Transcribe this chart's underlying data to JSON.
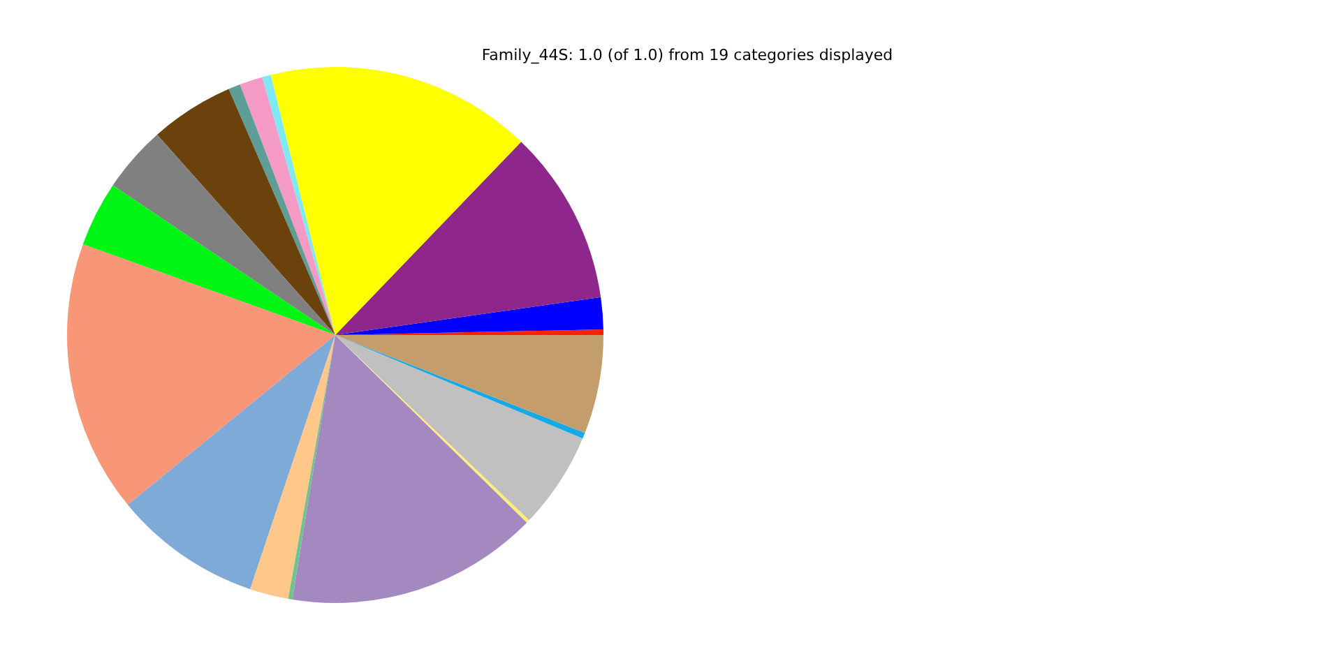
{
  "chart_data": {
    "type": "pie",
    "title": "Family_44S: 1.0 (of 1.0) from 19 categories displayed",
    "categories": [
      null,
      null,
      null,
      null,
      null,
      null,
      null,
      null,
      null,
      null,
      null,
      null,
      null,
      null,
      null,
      null,
      null,
      null,
      null
    ],
    "values": [
      0.53,
      1.39,
      0.72,
      5.06,
      4.0,
      3.94,
      16.42,
      8.94,
      2.33,
      0.25,
      15.22,
      0.2,
      5.83,
      0.36,
      5.95,
      0.33,
      1.92,
      10.56,
      16.05
    ],
    "colors": [
      "#7ee8f5",
      "#f59ac5",
      "#5f9e96",
      "#6b420b",
      "#808080",
      "#00f514",
      "#f89778",
      "#7eaad8",
      "#ffc78a",
      "#6fc48c",
      "#a488c0",
      "#ffef75",
      "#c0c0c0",
      "#17a9e6",
      "#c39d6c",
      "#ff2000",
      "#0000ff",
      "#8f268b",
      "#ffff00"
    ]
  }
}
